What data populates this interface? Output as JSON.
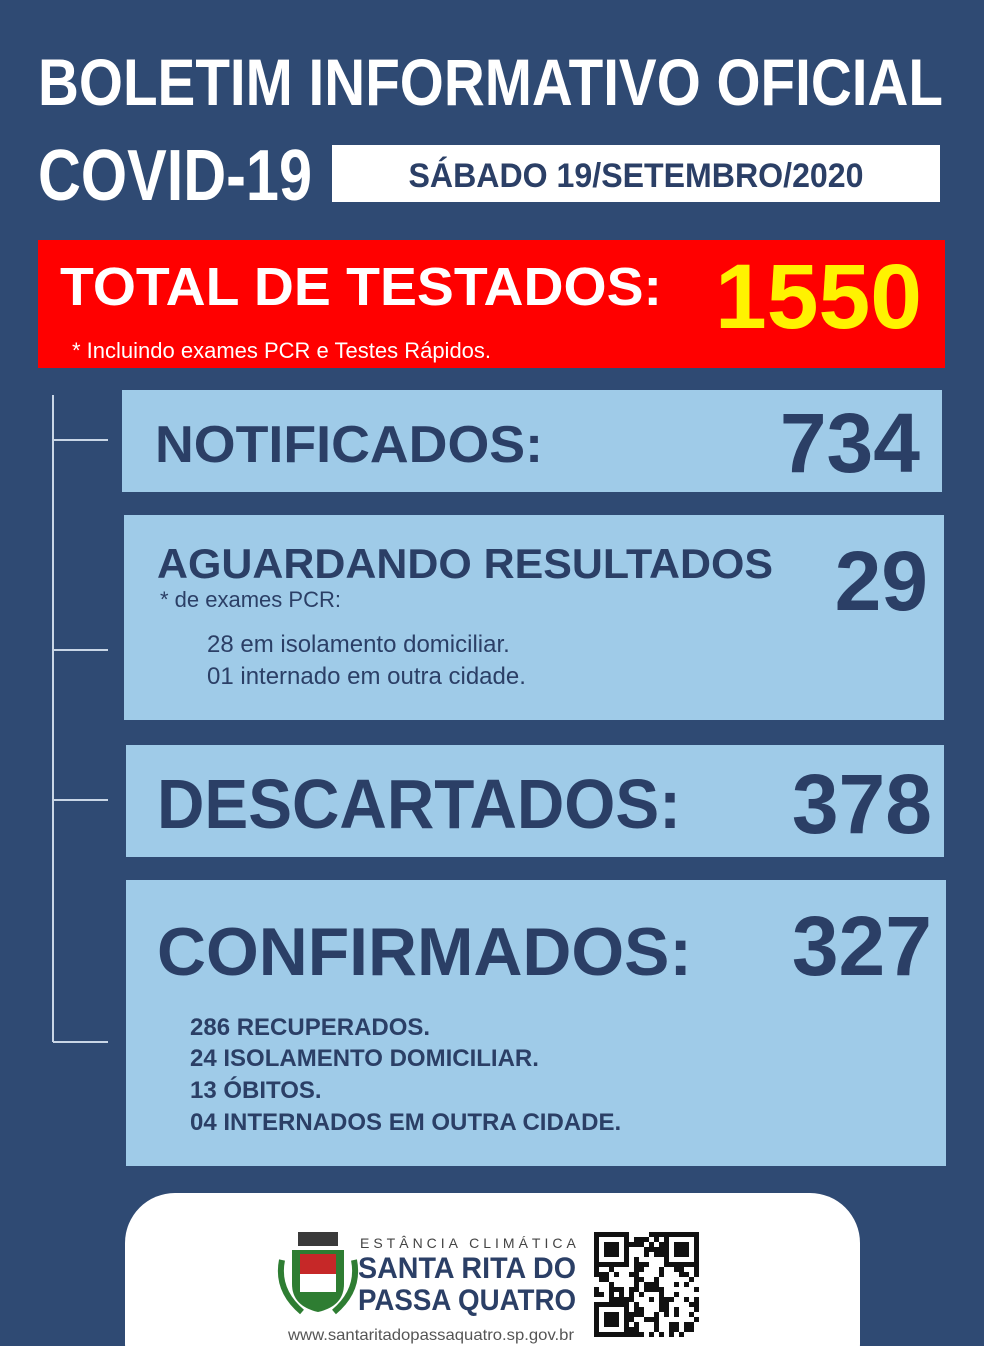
{
  "header": {
    "title_line1": "BOLETIM INFORMATIVO OFICIAL",
    "title_line2": "COVID-19",
    "date": "SÁBADO 19/SETEMBRO/2020"
  },
  "total": {
    "label": "TOTAL DE TESTADOS:",
    "value": "1550",
    "note": "* Incluindo exames PCR e Testes Rápidos."
  },
  "sections": [
    {
      "label": "NOTIFICADOS:",
      "value": "734"
    },
    {
      "label": "AGUARDANDO RESULTADOS",
      "value": "29",
      "note": "* de exames PCR:",
      "details": [
        "28 em isolamento domiciliar.",
        "01 internado em outra cidade."
      ]
    },
    {
      "label": "DESCARTADOS:",
      "value": "378"
    },
    {
      "label": "CONFIRMADOS:",
      "value": "327",
      "details": [
        "286 RECUPERADOS.",
        "24 ISOLAMENTO DOMICILIAR.",
        "13 ÓBITOS.",
        "04 INTERNADOS EM OUTRA CIDADE."
      ]
    }
  ],
  "footer": {
    "tagline": "ESTÂNCIA CLIMÁTICA",
    "name_line1": "SANTA RITA DO",
    "name_line2": "PASSA QUATRO",
    "url": "www.santaritadopassaquatro.sp.gov.br"
  }
}
